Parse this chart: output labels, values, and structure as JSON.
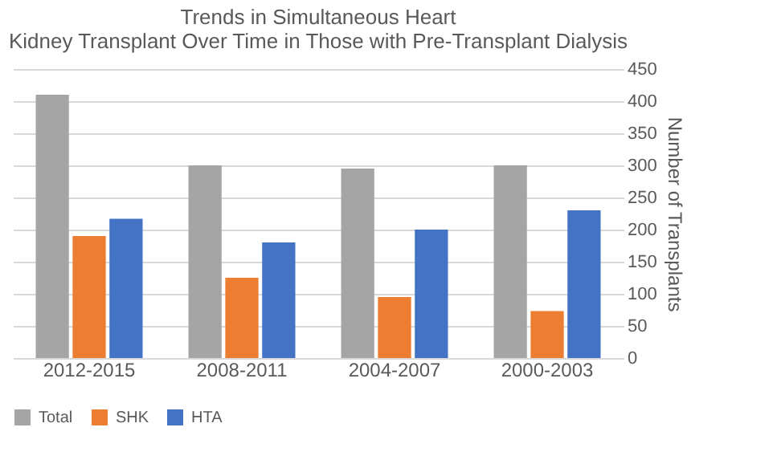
{
  "chart_data": {
    "type": "bar",
    "title": "Trends in Simultaneous Heart\nKidney Transplant Over Time in Those with Pre-Transplant Dialysis",
    "ylabel": "Number of Transplants",
    "categories": [
      "2012-2015",
      "2008-2011",
      "2004-2007",
      "2000-2003"
    ],
    "series": [
      {
        "name": "Total",
        "color": "#a5a5a5",
        "values": [
          410,
          300,
          295,
          300
        ]
      },
      {
        "name": "SHK",
        "color": "#ed7d31",
        "values": [
          190,
          125,
          95,
          73
        ]
      },
      {
        "name": "HTA",
        "color": "#4472c4",
        "values": [
          217,
          180,
          200,
          230
        ]
      }
    ],
    "ylim": [
      0,
      450
    ],
    "yticks": [
      0,
      50,
      100,
      150,
      200,
      250,
      300,
      350,
      400,
      450
    ],
    "grid": "y",
    "legend": "bottom"
  }
}
